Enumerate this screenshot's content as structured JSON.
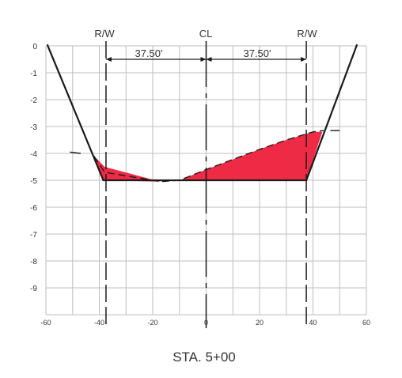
{
  "labels": {
    "rw_left": "R/W",
    "cl": "CL",
    "rw_right": "R/W",
    "dim_left": "37.50'",
    "dim_right": "37.50'",
    "station": "STA. 5+00"
  },
  "axes": {
    "x_ticks": [
      "-60",
      "-40",
      "-20",
      "0",
      "20",
      "40",
      "60"
    ],
    "y_ticks": [
      "0",
      "-1",
      "-2",
      "-3",
      "-4",
      "-5",
      "-6",
      "-7",
      "-8",
      "-9"
    ]
  },
  "colors": {
    "grid": "#bfbfbf",
    "line": "#1a1a1a",
    "fill": "#ee2a45"
  },
  "section": {
    "x_range": [
      -60,
      60
    ],
    "y_range": [
      -10,
      0
    ],
    "rw_offset": 37.5,
    "ground_profile": [
      [
        -42,
        -4.1
      ],
      [
        -38,
        -4.7
      ],
      [
        -17,
        -5.05
      ],
      [
        -10,
        -5.0
      ],
      [
        0,
        -4.6
      ],
      [
        20,
        -3.85
      ],
      [
        30,
        -3.5
      ],
      [
        40,
        -3.2
      ],
      [
        44,
        -3.15
      ]
    ],
    "excavation_left": [
      [
        -42,
        -4.1
      ],
      [
        -38.5,
        -5.0
      ],
      [
        -17,
        -5.05
      ],
      [
        -21,
        -4.95
      ],
      [
        -38,
        -4.5
      ]
    ],
    "excavation_right": [
      [
        -10,
        -5.0
      ],
      [
        37.5,
        -5.0
      ],
      [
        43.5,
        -3.2
      ],
      [
        40,
        -3.2
      ],
      [
        30,
        -3.5
      ],
      [
        20,
        -3.85
      ],
      [
        0,
        -4.6
      ]
    ],
    "design_section": [
      [
        -59.5,
        0.05
      ],
      [
        -38.5,
        -5.0
      ],
      [
        37.5,
        -5.0
      ],
      [
        56.5,
        0.05
      ]
    ]
  }
}
